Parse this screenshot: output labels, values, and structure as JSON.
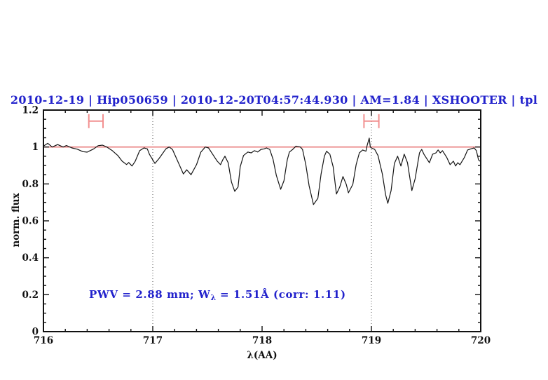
{
  "chart_data": {
    "type": "line",
    "title": "2010-12-19 | Hip050659 | 2010-12-20T04:57:44.930 | AM=1.84 | XSHOOTER | tpl",
    "xlabel": "λ(AA)",
    "ylabel": "norm. flux",
    "xlim": [
      716,
      720
    ],
    "ylim": [
      0,
      1.2
    ],
    "grid": false,
    "legend": null,
    "xticks": [
      {
        "v": 716,
        "label": "716"
      },
      {
        "v": 717,
        "label": "717"
      },
      {
        "v": 718,
        "label": "718"
      },
      {
        "v": 719,
        "label": "719"
      },
      {
        "v": 720,
        "label": "720"
      }
    ],
    "yticks": [
      {
        "v": 0,
        "label": "0"
      },
      {
        "v": 0.2,
        "label": "0.2"
      },
      {
        "v": 0.4,
        "label": "0.4"
      },
      {
        "v": 0.6,
        "label": "0.6"
      },
      {
        "v": 0.8,
        "label": "0.8"
      },
      {
        "v": 1,
        "label": "1"
      },
      {
        "v": 1.2,
        "label": "1.2"
      }
    ],
    "minor_x_step": 0.2,
    "minor_y_step": 0.05,
    "dotted_vlines": [
      717,
      719
    ],
    "reference_line": {
      "y": 1.0,
      "name": "continuum-fit"
    },
    "range_markers": [
      {
        "x_center": 716.48,
        "x_half_width": 0.065,
        "y": 1.14,
        "y_half_height": 0.038
      },
      {
        "x_center": 719.0,
        "x_half_width": 0.068,
        "y": 1.14,
        "y_half_height": 0.038
      }
    ],
    "annotation": {
      "pre": "PWV = 2.88 mm; W",
      "sub": "λ",
      "post": " = 1.51Å (corr: 1.11)"
    },
    "colors": {
      "accent_blue": "#2222cc",
      "continuum_red": "#e87d7d",
      "marker_red": "#f29090",
      "line_black": "#141414",
      "axis_black": "#111111",
      "dotted_gray": "#555555"
    },
    "series": [
      {
        "name": "telluric-spectrum",
        "points": [
          [
            716.0,
            1.005
          ],
          [
            716.04,
            1.02
          ],
          [
            716.08,
            1.0
          ],
          [
            716.13,
            1.013
          ],
          [
            716.18,
            1.0
          ],
          [
            716.21,
            1.008
          ],
          [
            716.26,
            0.995
          ],
          [
            716.31,
            0.988
          ],
          [
            716.36,
            0.975
          ],
          [
            716.4,
            0.972
          ],
          [
            716.46,
            0.99
          ],
          [
            716.5,
            1.007
          ],
          [
            716.54,
            1.01
          ],
          [
            716.58,
            1.0
          ],
          [
            716.63,
            0.98
          ],
          [
            716.68,
            0.954
          ],
          [
            716.72,
            0.923
          ],
          [
            716.76,
            0.905
          ],
          [
            716.78,
            0.916
          ],
          [
            716.81,
            0.897
          ],
          [
            716.84,
            0.923
          ],
          [
            716.88,
            0.98
          ],
          [
            716.92,
            0.995
          ],
          [
            716.95,
            0.99
          ],
          [
            716.97,
            0.96
          ],
          [
            717.0,
            0.93
          ],
          [
            717.02,
            0.911
          ],
          [
            717.06,
            0.94
          ],
          [
            717.12,
            0.99
          ],
          [
            717.15,
            1.0
          ],
          [
            717.18,
            0.987
          ],
          [
            717.22,
            0.934
          ],
          [
            717.28,
            0.854
          ],
          [
            717.31,
            0.877
          ],
          [
            717.35,
            0.85
          ],
          [
            717.4,
            0.904
          ],
          [
            717.44,
            0.972
          ],
          [
            717.48,
            1.0
          ],
          [
            717.51,
            0.995
          ],
          [
            717.54,
            0.968
          ],
          [
            717.59,
            0.923
          ],
          [
            717.62,
            0.904
          ],
          [
            717.64,
            0.93
          ],
          [
            717.66,
            0.95
          ],
          [
            717.69,
            0.915
          ],
          [
            717.72,
            0.81
          ],
          [
            717.75,
            0.76
          ],
          [
            717.78,
            0.783
          ],
          [
            717.8,
            0.893
          ],
          [
            717.83,
            0.954
          ],
          [
            717.87,
            0.973
          ],
          [
            717.9,
            0.968
          ],
          [
            717.93,
            0.98
          ],
          [
            717.96,
            0.973
          ],
          [
            717.99,
            0.987
          ],
          [
            718.02,
            0.99
          ],
          [
            718.04,
            0.995
          ],
          [
            718.07,
            0.987
          ],
          [
            718.1,
            0.934
          ],
          [
            718.13,
            0.847
          ],
          [
            718.17,
            0.771
          ],
          [
            718.2,
            0.817
          ],
          [
            718.23,
            0.93
          ],
          [
            718.25,
            0.973
          ],
          [
            718.28,
            0.987
          ],
          [
            718.31,
            1.005
          ],
          [
            718.35,
            1.0
          ],
          [
            718.37,
            0.987
          ],
          [
            718.4,
            0.904
          ],
          [
            718.43,
            0.79
          ],
          [
            718.47,
            0.688
          ],
          [
            718.51,
            0.722
          ],
          [
            718.54,
            0.854
          ],
          [
            718.57,
            0.95
          ],
          [
            718.59,
            0.977
          ],
          [
            718.62,
            0.961
          ],
          [
            718.65,
            0.893
          ],
          [
            718.68,
            0.745
          ],
          [
            718.71,
            0.783
          ],
          [
            718.74,
            0.84
          ],
          [
            718.77,
            0.798
          ],
          [
            718.79,
            0.752
          ],
          [
            718.83,
            0.798
          ],
          [
            718.86,
            0.904
          ],
          [
            718.89,
            0.968
          ],
          [
            718.92,
            0.984
          ],
          [
            718.95,
            0.977
          ],
          [
            718.96,
            1.007
          ],
          [
            718.98,
            1.048
          ],
          [
            718.99,
            1.0
          ],
          [
            719.0,
            0.995
          ],
          [
            719.03,
            0.987
          ],
          [
            719.06,
            0.954
          ],
          [
            719.1,
            0.854
          ],
          [
            719.13,
            0.741
          ],
          [
            719.15,
            0.695
          ],
          [
            719.18,
            0.764
          ],
          [
            719.21,
            0.911
          ],
          [
            719.24,
            0.95
          ],
          [
            719.27,
            0.897
          ],
          [
            719.3,
            0.961
          ],
          [
            719.33,
            0.915
          ],
          [
            719.37,
            0.764
          ],
          [
            719.4,
            0.828
          ],
          [
            719.44,
            0.968
          ],
          [
            719.46,
            0.987
          ],
          [
            719.48,
            0.961
          ],
          [
            719.53,
            0.915
          ],
          [
            719.56,
            0.961
          ],
          [
            719.59,
            0.968
          ],
          [
            719.61,
            0.984
          ],
          [
            719.63,
            0.968
          ],
          [
            719.65,
            0.98
          ],
          [
            719.69,
            0.943
          ],
          [
            719.72,
            0.904
          ],
          [
            719.75,
            0.923
          ],
          [
            719.77,
            0.897
          ],
          [
            719.79,
            0.915
          ],
          [
            719.81,
            0.904
          ],
          [
            719.85,
            0.943
          ],
          [
            719.88,
            0.984
          ],
          [
            719.91,
            0.99
          ],
          [
            719.94,
            0.995
          ],
          [
            719.96,
            0.98
          ],
          [
            719.98,
            0.93
          ],
          [
            720.0,
            0.92
          ]
        ]
      }
    ]
  }
}
